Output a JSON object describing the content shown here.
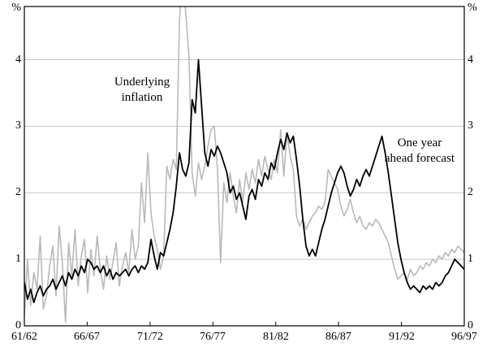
{
  "colors": {
    "background": "#ffffff",
    "frame": "#000000",
    "grid": "#c8c8c8",
    "series_underlying": "#000000",
    "series_forecast": "#b9b9b9"
  },
  "chart_data": {
    "type": "line",
    "unit_symbol": "%",
    "y_ticks": [
      0,
      1,
      2,
      3,
      4
    ],
    "ylim": [
      0,
      4.8
    ],
    "x_tick_labels": [
      "61/62",
      "66/67",
      "71/72",
      "76/77",
      "81/82",
      "86/87",
      "91/92",
      "96/97"
    ],
    "x_range_years": 35,
    "grid": "horizontal",
    "legend_position": "none",
    "annotations": [
      {
        "text": "Underlying inflation",
        "lines": [
          "Underlying",
          "inflation"
        ]
      },
      {
        "text": "One year ahead forecast",
        "lines": [
          "One year",
          "ahead forecast"
        ]
      }
    ],
    "series": [
      {
        "name": "One year ahead forecast",
        "color": "#b9b9b9",
        "values": [
          0.15,
          1.0,
          0.3,
          0.8,
          0.55,
          1.35,
          0.25,
          0.45,
          0.9,
          1.2,
          0.45,
          1.5,
          0.95,
          0.05,
          1.25,
          0.75,
          1.45,
          0.6,
          1.05,
          1.3,
          0.5,
          1.15,
          0.75,
          1.35,
          0.85,
          0.55,
          1.05,
          0.7,
          0.95,
          1.25,
          0.6,
          0.9,
          1.1,
          0.8,
          1.45,
          1.0,
          1.2,
          2.15,
          1.55,
          2.6,
          1.7,
          1.35,
          1.15,
          0.85,
          1.05,
          2.4,
          2.2,
          2.5,
          2.35,
          4.6,
          5.2,
          4.7,
          4.05,
          2.3,
          1.95,
          2.45,
          2.2,
          2.4,
          2.7,
          2.95,
          3.0,
          2.35,
          0.95,
          2.15,
          1.85,
          2.3,
          1.95,
          1.7,
          2.2,
          1.85,
          2.3,
          2.05,
          2.35,
          2.15,
          2.5,
          2.25,
          2.55,
          2.35,
          2.2,
          2.5,
          2.3,
          2.95,
          2.25,
          2.9,
          2.55,
          2.35,
          1.65,
          1.5,
          1.6,
          1.45,
          1.55,
          1.65,
          1.7,
          1.8,
          1.75,
          1.85,
          2.35,
          2.25,
          2.15,
          2.05,
          1.8,
          1.65,
          1.75,
          1.9,
          1.7,
          1.55,
          1.65,
          1.5,
          1.45,
          1.55,
          1.5,
          1.6,
          1.55,
          1.45,
          1.35,
          1.25,
          1.05,
          0.85,
          0.7,
          0.75,
          0.8,
          0.7,
          0.85,
          0.75,
          0.8,
          0.9,
          0.85,
          0.95,
          0.9,
          1.0,
          0.95,
          1.05,
          1.0,
          1.1,
          1.05,
          1.15,
          1.1,
          1.2,
          1.15,
          1.1
        ]
      },
      {
        "name": "Underlying inflation",
        "color": "#000000",
        "values": [
          0.65,
          0.4,
          0.55,
          0.35,
          0.5,
          0.6,
          0.45,
          0.55,
          0.6,
          0.7,
          0.55,
          0.65,
          0.75,
          0.6,
          0.8,
          0.7,
          0.85,
          0.75,
          0.9,
          0.8,
          1.0,
          0.95,
          0.85,
          0.9,
          0.8,
          0.9,
          0.75,
          0.85,
          0.7,
          0.8,
          0.75,
          0.8,
          0.85,
          0.75,
          0.85,
          0.9,
          0.8,
          0.9,
          0.85,
          0.95,
          1.3,
          1.05,
          0.85,
          1.1,
          1.05,
          1.25,
          1.45,
          1.7,
          2.1,
          2.6,
          2.35,
          2.25,
          2.45,
          3.4,
          3.2,
          4.0,
          3.3,
          2.6,
          2.4,
          2.65,
          2.55,
          2.7,
          2.6,
          2.45,
          2.3,
          2.0,
          2.1,
          1.9,
          2.0,
          1.8,
          1.6,
          1.95,
          2.05,
          1.9,
          2.2,
          2.1,
          2.3,
          2.2,
          2.45,
          2.35,
          2.6,
          2.8,
          2.65,
          2.9,
          2.75,
          2.85,
          2.5,
          2.1,
          1.6,
          1.2,
          1.05,
          1.15,
          1.05,
          1.25,
          1.45,
          1.6,
          1.8,
          2.0,
          2.15,
          2.3,
          2.4,
          2.3,
          2.1,
          1.95,
          2.05,
          2.2,
          2.1,
          2.25,
          2.35,
          2.25,
          2.4,
          2.55,
          2.7,
          2.85,
          2.6,
          2.3,
          1.95,
          1.6,
          1.25,
          1.0,
          0.8,
          0.65,
          0.55,
          0.6,
          0.55,
          0.5,
          0.6,
          0.55,
          0.6,
          0.55,
          0.65,
          0.6,
          0.65,
          0.75,
          0.8,
          0.9,
          1.0,
          0.95,
          0.9,
          0.85
        ]
      }
    ]
  }
}
